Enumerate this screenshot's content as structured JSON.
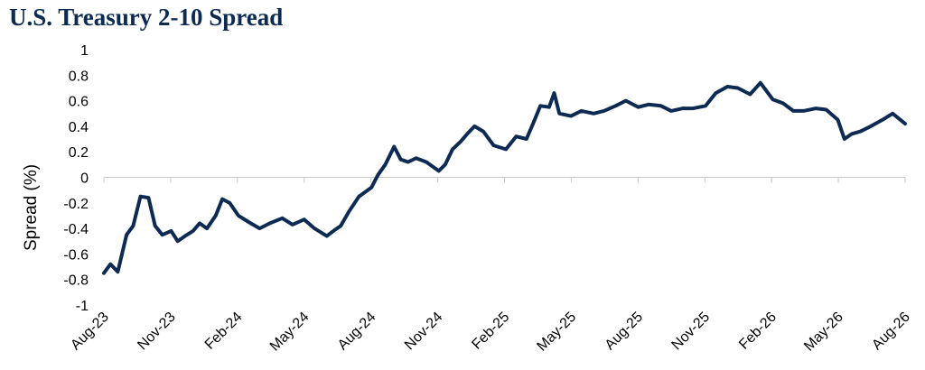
{
  "chart_data": {
    "type": "line",
    "title": "U.S. Treasury 2-10 Spread",
    "xlabel": "",
    "ylabel": "Spread (%)",
    "ylim": [
      -1,
      1
    ],
    "yticks": [
      "1",
      "0.8",
      "0.6",
      "0.4",
      "0.2",
      "0",
      "-0.2",
      "-0.4",
      "-0.6",
      "-0.8",
      "-1"
    ],
    "xticks": [
      "Aug-23",
      "Nov-23",
      "Feb-24",
      "May-24",
      "Aug-24",
      "Nov-24",
      "Feb-25",
      "May-25",
      "Aug-25",
      "Nov-25",
      "Feb-26",
      "May-26",
      "Aug-26"
    ],
    "grid": false,
    "line_color": "#0d2a52",
    "series": [
      {
        "x": [
          "2023-08-01",
          "2023-08-10",
          "2023-08-20",
          "2023-09-01",
          "2023-09-10",
          "2023-09-20",
          "2023-10-01",
          "2023-10-10",
          "2023-10-20",
          "2023-11-01",
          "2023-11-10",
          "2023-11-20",
          "2023-12-01",
          "2023-12-10",
          "2023-12-20",
          "2024-01-01",
          "2024-01-10",
          "2024-01-20",
          "2024-02-01",
          "2024-02-15",
          "2024-03-01",
          "2024-03-15",
          "2024-04-01",
          "2024-04-15",
          "2024-05-01",
          "2024-05-15",
          "2024-06-01",
          "2024-06-10",
          "2024-06-20",
          "2024-07-01",
          "2024-07-15",
          "2024-08-01",
          "2024-08-10",
          "2024-08-20",
          "2024-09-01",
          "2024-09-10",
          "2024-09-20",
          "2024-10-01",
          "2024-10-15",
          "2024-11-01",
          "2024-11-10",
          "2024-11-20",
          "2024-12-01",
          "2024-12-10",
          "2024-12-20",
          "2025-01-01",
          "2025-01-15",
          "2025-02-01",
          "2025-02-15",
          "2025-03-01",
          "2025-03-10",
          "2025-03-20",
          "2025-04-01",
          "2025-04-08",
          "2025-04-15",
          "2025-05-01",
          "2025-05-15",
          "2025-06-01",
          "2025-06-15",
          "2025-07-01",
          "2025-07-15",
          "2025-08-01",
          "2025-08-15",
          "2025-09-01",
          "2025-09-15",
          "2025-10-01",
          "2025-10-15",
          "2025-11-01",
          "2025-11-15",
          "2025-12-01",
          "2025-12-15",
          "2026-01-01",
          "2026-01-15",
          "2026-02-01",
          "2026-02-15",
          "2026-03-01",
          "2026-03-15",
          "2026-04-01",
          "2026-04-15",
          "2026-05-01",
          "2026-05-10",
          "2026-05-20",
          "2026-06-01",
          "2026-06-15",
          "2026-07-01",
          "2026-07-15",
          "2026-08-01"
        ],
        "values": [
          -0.75,
          -0.68,
          -0.74,
          -0.45,
          -0.38,
          -0.15,
          -0.16,
          -0.38,
          -0.45,
          -0.42,
          -0.5,
          -0.46,
          -0.42,
          -0.36,
          -0.4,
          -0.3,
          -0.17,
          -0.2,
          -0.3,
          -0.35,
          -0.4,
          -0.36,
          -0.32,
          -0.37,
          -0.33,
          -0.4,
          -0.46,
          -0.42,
          -0.38,
          -0.27,
          -0.15,
          -0.08,
          0.02,
          0.1,
          0.24,
          0.14,
          0.12,
          0.15,
          0.12,
          0.05,
          0.1,
          0.22,
          0.28,
          0.34,
          0.4,
          0.36,
          0.25,
          0.22,
          0.32,
          0.3,
          0.42,
          0.56,
          0.55,
          0.66,
          0.5,
          0.48,
          0.52,
          0.5,
          0.52,
          0.56,
          0.6,
          0.55,
          0.57,
          0.56,
          0.52,
          0.54,
          0.54,
          0.56,
          0.66,
          0.71,
          0.7,
          0.65,
          0.74,
          0.61,
          0.58,
          0.52,
          0.52,
          0.54,
          0.53,
          0.45,
          0.3,
          0.34,
          0.36,
          0.4,
          0.45,
          0.5,
          0.42
        ]
      }
    ]
  }
}
